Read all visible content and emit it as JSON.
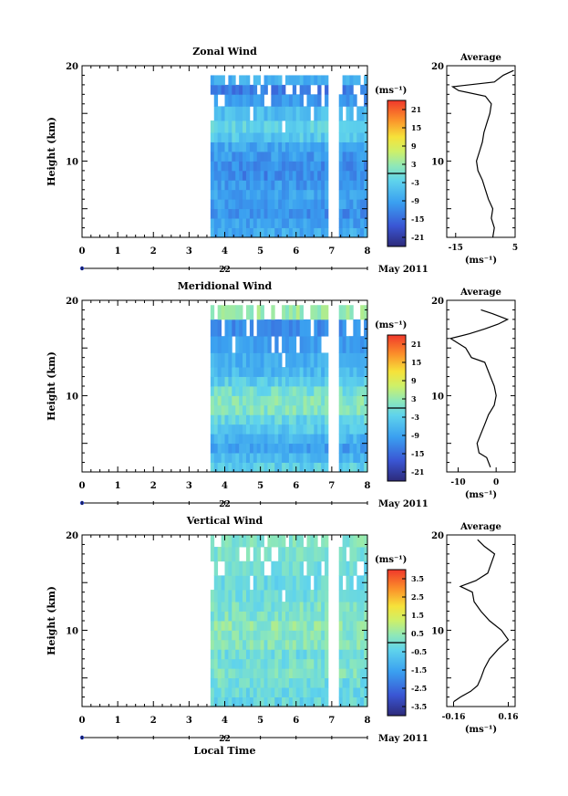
{
  "figure": {
    "date_label": "May 2011",
    "day_label": "22",
    "x_axis_label": "Local Time",
    "y_axis_label": "Height (km)",
    "x_ticks": [
      "0",
      "1",
      "2",
      "3",
      "4",
      "5",
      "6",
      "7",
      "8"
    ],
    "y_ticks": [
      "10",
      "20"
    ]
  },
  "panels": [
    {
      "title": "Zonal Wind",
      "colorbar": {
        "unit": "(ms⁻¹)",
        "ticks": [
          "21",
          "15",
          "9",
          "3",
          "-3",
          "-9",
          "-15",
          "-21"
        ]
      },
      "average": {
        "title": "Average",
        "unit": "(ms⁻¹)",
        "ticks": [
          "-15",
          "5"
        ]
      }
    },
    {
      "title": "Meridional Wind",
      "colorbar": {
        "unit": "(ms⁻¹)",
        "ticks": [
          "21",
          "15",
          "9",
          "3",
          "-3",
          "-9",
          "-15",
          "-21"
        ]
      },
      "average": {
        "title": "Average",
        "unit": "(ms⁻¹)",
        "ticks": [
          "-10",
          "0"
        ]
      }
    },
    {
      "title": "Vertical Wind",
      "colorbar": {
        "unit": "(ms⁻¹)",
        "ticks": [
          "3.5",
          "2.5",
          "1.5",
          "0.5",
          "-0.5",
          "-1.5",
          "-2.5",
          "-3.5"
        ]
      },
      "average": {
        "title": "Average",
        "unit": "(ms⁻¹)",
        "ticks": [
          "-0.16",
          "0.16"
        ]
      }
    }
  ],
  "chart_data": [
    {
      "type": "heatmap",
      "title": "Zonal Wind",
      "xlabel": "",
      "ylabel": "Height (km)",
      "xlim": [
        0,
        8
      ],
      "ylim": [
        2,
        20
      ],
      "data_time_range": [
        3.6,
        8.0
      ],
      "data_gap": [
        6.8,
        7.1
      ],
      "color_range": [
        -24,
        24
      ],
      "rows": [
        {
          "h": 2.5,
          "v": -8
        },
        {
          "h": 3.5,
          "v": -9
        },
        {
          "h": 4.5,
          "v": -11
        },
        {
          "h": 5.5,
          "v": -10
        },
        {
          "h": 6.5,
          "v": -9
        },
        {
          "h": 7.5,
          "v": -10
        },
        {
          "h": 8.5,
          "v": -12
        },
        {
          "h": 9.5,
          "v": -11
        },
        {
          "h": 10.5,
          "v": -10
        },
        {
          "h": 11.5,
          "v": -8
        },
        {
          "h": 12.5,
          "v": -4
        },
        {
          "h": 13.5,
          "v": -3
        },
        {
          "h": 15.0,
          "v": -6
        },
        {
          "h": 16.5,
          "v": -11
        },
        {
          "h": 17.5,
          "v": -14
        },
        {
          "h": 18.5,
          "v": -8
        }
      ],
      "average_profile": {
        "xlim": [
          -18,
          5
        ],
        "ylim": [
          2,
          20
        ],
        "unit": "ms-1",
        "points": [
          [
            -2.5,
            2
          ],
          [
            -2.0,
            3
          ],
          [
            -3.0,
            4
          ],
          [
            -2.5,
            5
          ],
          [
            -4.0,
            6
          ],
          [
            -5.0,
            7
          ],
          [
            -6.0,
            8
          ],
          [
            -7.5,
            9
          ],
          [
            -8.0,
            10
          ],
          [
            -7.0,
            11
          ],
          [
            -6.0,
            12
          ],
          [
            -5.5,
            13
          ],
          [
            -4.5,
            14
          ],
          [
            -3.5,
            15
          ],
          [
            -3.0,
            16
          ],
          [
            -5.0,
            16.8
          ],
          [
            -14.0,
            17.4
          ],
          [
            -16.0,
            17.8
          ],
          [
            -2.0,
            18.3
          ],
          [
            1.0,
            19.0
          ],
          [
            4.5,
            19.5
          ]
        ]
      }
    },
    {
      "type": "heatmap",
      "title": "Meridional Wind",
      "xlabel": "",
      "ylabel": "Height (km)",
      "xlim": [
        0,
        8
      ],
      "ylim": [
        2,
        20
      ],
      "data_time_range": [
        3.6,
        8.0
      ],
      "data_gap": [
        6.8,
        7.1
      ],
      "color_range": [
        -24,
        24
      ],
      "rows": [
        {
          "h": 2.5,
          "v": -3
        },
        {
          "h": 3.5,
          "v": -6
        },
        {
          "h": 4.5,
          "v": -9
        },
        {
          "h": 5.5,
          "v": -7
        },
        {
          "h": 6.5,
          "v": -4
        },
        {
          "h": 7.5,
          "v": -2
        },
        {
          "h": 8.5,
          "v": 1
        },
        {
          "h": 9.5,
          "v": 2
        },
        {
          "h": 10.5,
          "v": 0
        },
        {
          "h": 11.5,
          "v": -3
        },
        {
          "h": 12.5,
          "v": -6
        },
        {
          "h": 13.5,
          "v": -8
        },
        {
          "h": 15.5,
          "v": -10
        },
        {
          "h": 17.0,
          "v": -12
        },
        {
          "h": 19.0,
          "v": 3
        }
      ],
      "average_profile": {
        "xlim": [
          -13,
          5
        ],
        "ylim": [
          2,
          20
        ],
        "unit": "ms-1",
        "points": [
          [
            -1.5,
            2.5
          ],
          [
            -2.5,
            3.5
          ],
          [
            -4.5,
            4
          ],
          [
            -5.0,
            5
          ],
          [
            -4.0,
            6
          ],
          [
            -3.0,
            7
          ],
          [
            -2.0,
            8
          ],
          [
            -0.5,
            9
          ],
          [
            0.0,
            10
          ],
          [
            -0.5,
            11
          ],
          [
            -1.5,
            12
          ],
          [
            -2.5,
            13
          ],
          [
            -3.0,
            13.5
          ],
          [
            -6.5,
            14
          ],
          [
            -8.0,
            15
          ],
          [
            -10.0,
            15.5
          ],
          [
            -12.0,
            16
          ],
          [
            -7.0,
            16.5
          ],
          [
            -3.0,
            17
          ],
          [
            0.5,
            17.5
          ],
          [
            3.0,
            18
          ],
          [
            -1.0,
            18.6
          ],
          [
            -4.0,
            19
          ]
        ]
      }
    },
    {
      "type": "heatmap",
      "title": "Vertical Wind",
      "xlabel": "Local Time",
      "ylabel": "Height (km)",
      "xlim": [
        0,
        8
      ],
      "ylim": [
        2,
        20
      ],
      "data_time_range": [
        3.6,
        8.0
      ],
      "data_gap": [
        6.8,
        7.1
      ],
      "color_range": [
        -4,
        4
      ],
      "rows": [
        {
          "h": 2.5,
          "v": -0.3
        },
        {
          "h": 3.5,
          "v": -0.2
        },
        {
          "h": 4.5,
          "v": -0.1
        },
        {
          "h": 5.5,
          "v": 0.1
        },
        {
          "h": 6.5,
          "v": 0.0
        },
        {
          "h": 7.5,
          "v": -0.1
        },
        {
          "h": 8.5,
          "v": 0.2
        },
        {
          "h": 9.5,
          "v": 0.3
        },
        {
          "h": 10.5,
          "v": 0.4
        },
        {
          "h": 11.5,
          "v": 0.2
        },
        {
          "h": 12.5,
          "v": 0.1
        },
        {
          "h": 13.5,
          "v": -0.2
        },
        {
          "h": 15.0,
          "v": -0.3
        },
        {
          "h": 16.5,
          "v": -0.2
        },
        {
          "h": 18.0,
          "v": 0.0
        },
        {
          "h": 19.5,
          "v": 0.1
        }
      ],
      "average_profile": {
        "xlim": [
          -0.2,
          0.2
        ],
        "ylim": [
          2,
          20
        ],
        "unit": "ms-1",
        "points": [
          [
            -0.16,
            2.5
          ],
          [
            -0.12,
            3
          ],
          [
            -0.06,
            3.6
          ],
          [
            -0.02,
            4.2
          ],
          [
            0.0,
            5
          ],
          [
            0.02,
            6
          ],
          [
            0.05,
            7
          ],
          [
            0.1,
            8
          ],
          [
            0.16,
            9
          ],
          [
            0.12,
            10
          ],
          [
            0.05,
            11
          ],
          [
            0.0,
            12
          ],
          [
            -0.04,
            13
          ],
          [
            -0.05,
            14
          ],
          [
            -0.12,
            14.6
          ],
          [
            -0.03,
            15.2
          ],
          [
            0.04,
            16
          ],
          [
            0.06,
            17
          ],
          [
            0.08,
            18
          ],
          [
            0.02,
            18.8
          ],
          [
            -0.02,
            19.5
          ]
        ]
      }
    }
  ]
}
